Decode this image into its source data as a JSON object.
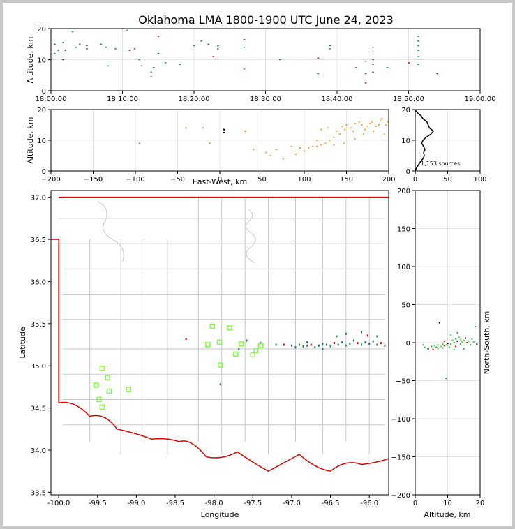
{
  "title": "Oklahoma LMA 1800-1900 UTC June 24, 2023",
  "colors": {
    "frame": "#c8c8c8",
    "state_border": "#e00000",
    "county": "#c8c8c8",
    "station": "#80ff40",
    "early": "#1f6f6f",
    "late": "#ff9a30"
  },
  "chart_data": [
    {
      "id": "time_height",
      "type": "scatter",
      "xlabel": "",
      "ylabel": "Altitude, km",
      "x_ticks": [
        "18:00:00",
        "18:10:00",
        "18:20:00",
        "18:30:00",
        "18:40:00",
        "18:50:00",
        "19:00:00"
      ],
      "xlim": [
        "18:00:00",
        "19:00:00"
      ],
      "ylim": [
        0,
        20
      ],
      "y_ticks": [
        0,
        10,
        20
      ],
      "points": [
        [
          "18:00:30",
          15
        ],
        [
          "18:00:30",
          12
        ],
        [
          "18:01:00",
          13
        ],
        [
          "18:01:40",
          10
        ],
        [
          "18:01:40",
          15.5
        ],
        [
          "18:02:00",
          13
        ],
        [
          "18:03:00",
          19
        ],
        [
          "18:03:30",
          14
        ],
        [
          "18:04:00",
          15
        ],
        [
          "18:05:00",
          14.5
        ],
        [
          "18:05:00",
          13.5
        ],
        [
          "18:07:00",
          15
        ],
        [
          "18:07:40",
          14
        ],
        [
          "18:08:00",
          8
        ],
        [
          "18:09:00",
          13.5
        ],
        [
          "18:10:00",
          20
        ],
        [
          "18:10:40",
          19.5
        ],
        [
          "18:11:00",
          13
        ],
        [
          "18:11:40",
          13.5
        ],
        [
          "18:12:20",
          10
        ],
        [
          "18:12:40",
          8
        ],
        [
          "18:14:00",
          6
        ],
        [
          "18:14:00",
          4.5
        ],
        [
          "18:14:20",
          7.5
        ],
        [
          "18:15:00",
          17.5
        ],
        [
          "18:15:00",
          12
        ],
        [
          "18:16:00",
          9
        ],
        [
          "18:18:00",
          8.5
        ],
        [
          "18:20:00",
          14.5
        ],
        [
          "18:21:00",
          16
        ],
        [
          "18:22:00",
          15
        ],
        [
          "18:22:40",
          11
        ],
        [
          "18:23:20",
          13.5
        ],
        [
          "18:23:20",
          14.5
        ],
        [
          "18:27:00",
          16.5
        ],
        [
          "18:27:00",
          14
        ],
        [
          "18:27:00",
          7
        ],
        [
          "18:32:00",
          10
        ],
        [
          "18:37:20",
          10.5
        ],
        [
          "18:37:20",
          5.5
        ],
        [
          "18:39:00",
          14.5
        ],
        [
          "18:39:00",
          13.5
        ],
        [
          "18:42:40",
          7.5
        ],
        [
          "18:44:00",
          9.5
        ],
        [
          "18:44:00",
          5.5
        ],
        [
          "18:44:00",
          2.5
        ],
        [
          "18:45:00",
          14
        ],
        [
          "18:45:00",
          12.5
        ],
        [
          "18:45:00",
          10
        ],
        [
          "18:45:00",
          8.5
        ],
        [
          "18:45:00",
          6
        ],
        [
          "18:47:00",
          7.5
        ],
        [
          "18:50:00",
          9
        ],
        [
          "18:51:20",
          16
        ],
        [
          "18:51:20",
          17.5
        ],
        [
          "18:51:20",
          13
        ],
        [
          "18:51:20",
          11
        ],
        [
          "18:51:20",
          8.5
        ],
        [
          "18:51:20",
          14.5
        ],
        [
          "18:54:00",
          5.5
        ]
      ]
    },
    {
      "id": "east_west_height",
      "type": "scatter",
      "xlabel": "East-West, km",
      "ylabel": "Altitude, km",
      "xlim": [
        -200,
        200
      ],
      "ylim": [
        0,
        20
      ],
      "x_ticks": [
        -200,
        -150,
        -100,
        -50,
        0,
        50,
        100,
        150,
        200
      ],
      "y_ticks": [
        0,
        10,
        20
      ],
      "points": [
        [
          -95,
          9
        ],
        [
          -40,
          14
        ],
        [
          -20,
          14
        ],
        [
          -12,
          9
        ],
        [
          5,
          12.5
        ],
        [
          5,
          13.5
        ],
        [
          30,
          13
        ],
        [
          40,
          7
        ],
        [
          55,
          6
        ],
        [
          60,
          5
        ],
        [
          67,
          7
        ],
        [
          75,
          4
        ],
        [
          85,
          8
        ],
        [
          95,
          7.5
        ],
        [
          100,
          6.5
        ],
        [
          105,
          7.5
        ],
        [
          110,
          8
        ],
        [
          115,
          8
        ],
        [
          120,
          8.5
        ],
        [
          125,
          9
        ],
        [
          130,
          10
        ],
        [
          135,
          11
        ],
        [
          138,
          13
        ],
        [
          142,
          12
        ],
        [
          145,
          14.5
        ],
        [
          148,
          13.5
        ],
        [
          150,
          15
        ],
        [
          155,
          14
        ],
        [
          158,
          13
        ],
        [
          160,
          15.5
        ],
        [
          165,
          16
        ],
        [
          168,
          15
        ],
        [
          172,
          13.5
        ],
        [
          175,
          14.5
        ],
        [
          178,
          15.5
        ],
        [
          180,
          16
        ],
        [
          182,
          13
        ],
        [
          185,
          14.5
        ],
        [
          188,
          15
        ],
        [
          190,
          16.5
        ],
        [
          192,
          17
        ],
        [
          195,
          12
        ],
        [
          197,
          15
        ],
        [
          199,
          16
        ],
        [
          120,
          13.5
        ],
        [
          128,
          14
        ],
        [
          135,
          8.5
        ],
        [
          147,
          9
        ],
        [
          160,
          10.5
        ],
        [
          170,
          12
        ],
        [
          90,
          5.5
        ],
        [
          115,
          10
        ]
      ]
    },
    {
      "id": "height_histogram",
      "type": "line",
      "xlim": [
        0,
        100
      ],
      "ylim": [
        0,
        20
      ],
      "x_ticks": [
        0,
        50,
        100
      ],
      "y_ticks": [
        0,
        10,
        20
      ],
      "annotation": "1,153 sources",
      "altitude": [
        0,
        1,
        2,
        3,
        4,
        5,
        6,
        7,
        8,
        9,
        10,
        11,
        12,
        13,
        14,
        15,
        16,
        17,
        18,
        19,
        20
      ],
      "counts": [
        0,
        2,
        5,
        8,
        12,
        14,
        13,
        15,
        13,
        10,
        12,
        17,
        24,
        28,
        22,
        20,
        18,
        12,
        9,
        3,
        0
      ]
    },
    {
      "id": "plan_view",
      "type": "scatter",
      "xlabel": "Longitude",
      "ylabel": "Latitude",
      "xlim": [
        -100.1,
        -95.75
      ],
      "ylim": [
        33.47,
        37.08
      ],
      "x_ticks": [
        -100.0,
        -99.5,
        -99.0,
        -98.5,
        -98.0,
        -97.5,
        -97.0,
        -96.5,
        -96.0
      ],
      "y_ticks": [
        33.5,
        34.0,
        34.5,
        35.0,
        35.5,
        36.0,
        36.5,
        37.0
      ],
      "stations": [
        [
          -98.02,
          35.47
        ],
        [
          -97.8,
          35.45
        ],
        [
          -97.93,
          35.28
        ],
        [
          -98.08,
          35.25
        ],
        [
          -97.65,
          35.26
        ],
        [
          -97.4,
          35.24
        ],
        [
          -97.72,
          35.14
        ],
        [
          -97.5,
          35.13
        ],
        [
          -97.46,
          35.18
        ],
        [
          -97.92,
          35.01
        ],
        [
          -99.44,
          34.97
        ],
        [
          -99.37,
          34.86
        ],
        [
          -99.52,
          34.77
        ],
        [
          -99.35,
          34.7
        ],
        [
          -99.1,
          34.72
        ],
        [
          -99.48,
          34.6
        ],
        [
          -99.44,
          34.51
        ]
      ],
      "sources": [
        [
          -97.58,
          35.3
        ],
        [
          -97.2,
          35.25
        ],
        [
          -97.1,
          35.25
        ],
        [
          -97.0,
          35.24
        ],
        [
          -96.95,
          35.22
        ],
        [
          -96.9,
          35.25
        ],
        [
          -96.85,
          35.23
        ],
        [
          -96.8,
          35.24
        ],
        [
          -96.75,
          35.25
        ],
        [
          -96.7,
          35.22
        ],
        [
          -96.65,
          35.24
        ],
        [
          -96.6,
          35.26
        ],
        [
          -96.55,
          35.25
        ],
        [
          -96.5,
          35.23
        ],
        [
          -96.45,
          35.27
        ],
        [
          -96.4,
          35.25
        ],
        [
          -96.35,
          35.28
        ],
        [
          -96.3,
          35.24
        ],
        [
          -96.25,
          35.26
        ],
        [
          -96.2,
          35.3
        ],
        [
          -96.15,
          35.27
        ],
        [
          -96.1,
          35.25
        ],
        [
          -96.05,
          35.28
        ],
        [
          -96.0,
          35.26
        ],
        [
          -95.95,
          35.29
        ],
        [
          -95.9,
          35.25
        ],
        [
          -95.85,
          35.27
        ],
        [
          -95.8,
          35.24
        ],
        [
          -96.6,
          35.2
        ],
        [
          -96.42,
          35.35
        ],
        [
          -96.3,
          35.38
        ],
        [
          -96.1,
          35.4
        ],
        [
          -96.02,
          35.36
        ],
        [
          -95.9,
          35.35
        ],
        [
          -97.4,
          35.27
        ],
        [
          -96.8,
          35.28
        ],
        [
          -97.68,
          35.2
        ],
        [
          -97.92,
          34.78
        ],
        [
          -98.36,
          35.32
        ]
      ]
    },
    {
      "id": "north_south_height",
      "type": "scatter",
      "xlabel": "Altitude, km",
      "ylabel": "North-South, km",
      "xlim": [
        0,
        20
      ],
      "ylim": [
        -200,
        200
      ],
      "x_ticks": [
        0,
        10,
        20
      ],
      "y_ticks": [
        -200,
        -150,
        -100,
        -50,
        0,
        50,
        100,
        150,
        200
      ],
      "points": [
        [
          2.5,
          -3
        ],
        [
          3,
          -6
        ],
        [
          4,
          -8
        ],
        [
          5,
          -5
        ],
        [
          5.5,
          -9
        ],
        [
          6,
          -4
        ],
        [
          6.5,
          -6
        ],
        [
          7,
          -3
        ],
        [
          7,
          -8
        ],
        [
          7.5,
          26
        ],
        [
          8,
          -5
        ],
        [
          8.5,
          -2
        ],
        [
          8.5,
          -7
        ],
        [
          9,
          -4
        ],
        [
          9.5,
          -3
        ],
        [
          9.5,
          -47
        ],
        [
          10,
          -1
        ],
        [
          10.5,
          -6
        ],
        [
          11,
          -2
        ],
        [
          11.5,
          3
        ],
        [
          12,
          0
        ],
        [
          12.5,
          5
        ],
        [
          12.5,
          -5
        ],
        [
          13,
          2
        ],
        [
          13,
          13
        ],
        [
          13.5,
          7
        ],
        [
          14,
          4
        ],
        [
          14,
          -2
        ],
        [
          14.5,
          1
        ],
        [
          15,
          3
        ],
        [
          15.5,
          6
        ],
        [
          16,
          0
        ],
        [
          16.5,
          2
        ],
        [
          17,
          -3
        ],
        [
          17.5,
          5
        ],
        [
          18,
          1
        ],
        [
          18.5,
          21
        ],
        [
          19,
          -2
        ],
        [
          11,
          10
        ],
        [
          15,
          -8
        ],
        [
          9,
          2
        ],
        [
          12,
          -9
        ]
      ]
    }
  ]
}
